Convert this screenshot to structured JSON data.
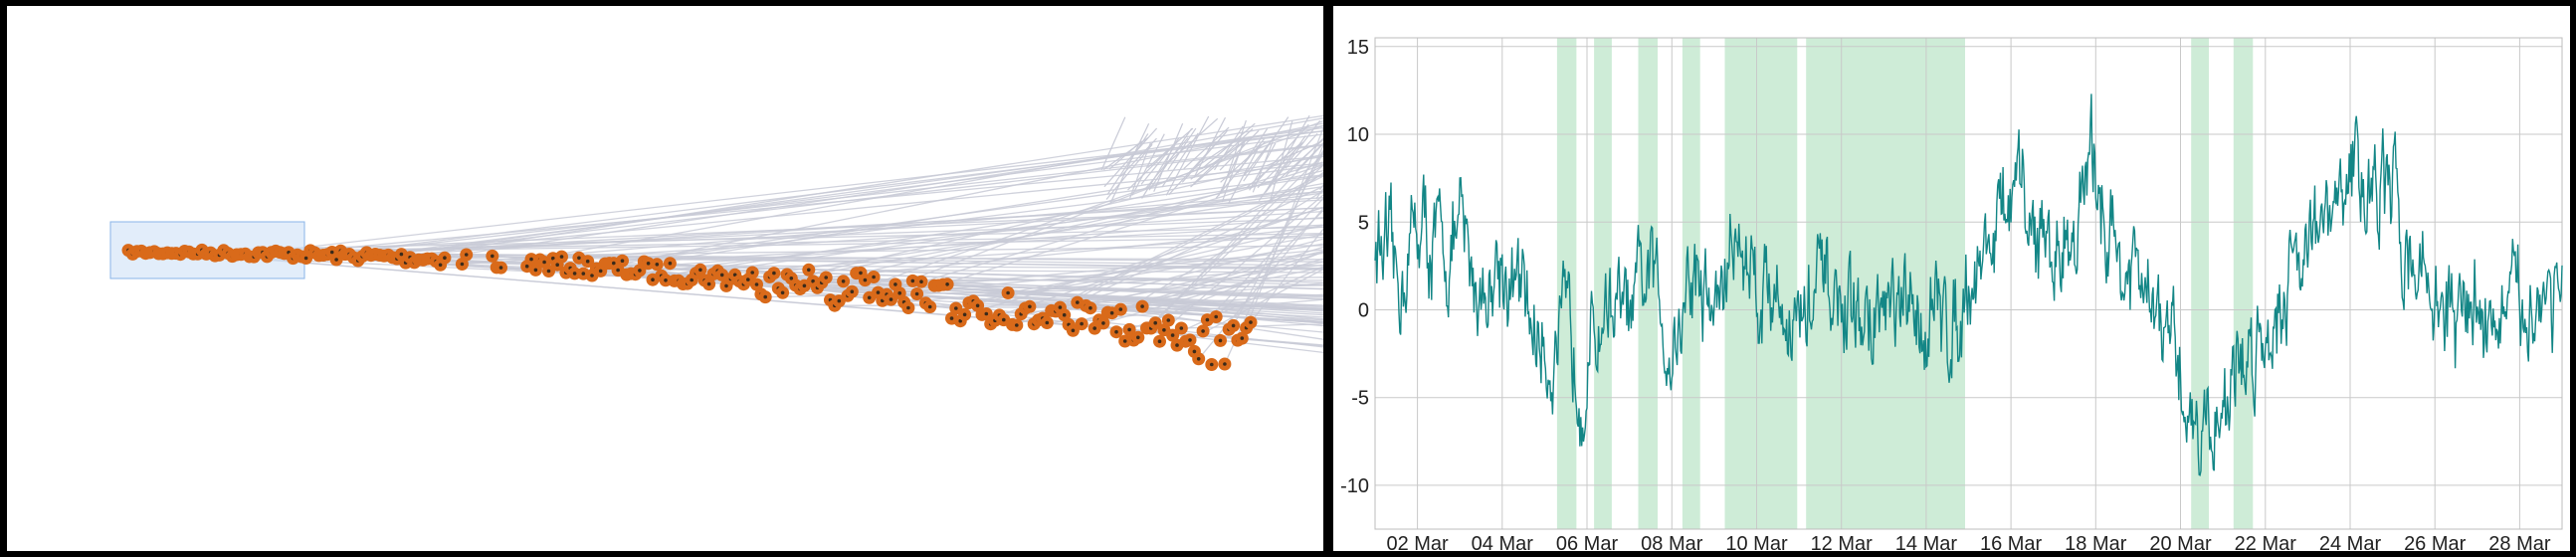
{
  "colors": {
    "background": "#ffffff",
    "border": "#000000",
    "links": "#c8cad6",
    "node_fill": "#d96a1a",
    "node_dot": "#3a2a1a",
    "brush": "#cfe1f7",
    "brush_stroke": "#8ab4e8",
    "line": "#138686",
    "shade": "#a6dcb7",
    "grid": "#c9c9c9"
  },
  "chart_data": [
    {
      "type": "scatter",
      "description_free": true,
      "node_count_approx": 260,
      "brush_selection": true,
      "links": true
    },
    {
      "type": "line",
      "x_start": "2024-03-01",
      "x_end": "2024-03-29",
      "x_tick_labels": [
        "02 Mar",
        "04 Mar",
        "06 Mar",
        "08 Mar",
        "10 Mar",
        "12 Mar",
        "14 Mar",
        "16 Mar",
        "18 Mar",
        "20 Mar",
        "22 Mar",
        "24 Mar",
        "26 Mar",
        "28 Mar"
      ],
      "y_ticks": [
        15,
        10,
        5,
        0,
        -5,
        -10
      ],
      "y_tick_labels": [
        "15",
        "10",
        "5",
        "0",
        "-5",
        "-10"
      ],
      "ylim": [
        -12.5,
        15.5
      ],
      "grid": true,
      "shaded_periods": [
        [
          "2024-03-05T07:00",
          "2024-03-05T18:00"
        ],
        [
          "2024-03-06T04:00",
          "2024-03-06T14:00"
        ],
        [
          "2024-03-07T05:00",
          "2024-03-07T16:00"
        ],
        [
          "2024-03-08T06:00",
          "2024-03-08T16:00"
        ],
        [
          "2024-03-09T06:00",
          "2024-03-10T23:00"
        ],
        [
          "2024-03-11T04:00",
          "2024-03-14T22:00"
        ],
        [
          "2024-03-20T06:00",
          "2024-03-20T16:00"
        ],
        [
          "2024-03-21T06:00",
          "2024-03-21T17:00"
        ]
      ],
      "series_outline": [
        [
          "2024-03-01T00:00",
          4
        ],
        [
          "2024-03-01T12:00",
          1
        ],
        [
          "2024-03-02T00:00",
          5
        ],
        [
          "2024-03-02T12:00",
          3
        ],
        [
          "2024-03-03T00:00",
          4
        ],
        [
          "2024-03-03T12:00",
          1
        ],
        [
          "2024-03-04T00:00",
          3
        ],
        [
          "2024-03-04T12:00",
          0
        ],
        [
          "2024-03-05T00:00",
          -2
        ],
        [
          "2024-03-05T12:00",
          -2
        ],
        [
          "2024-03-06T00:00",
          -3
        ],
        [
          "2024-03-06T12:00",
          1
        ],
        [
          "2024-03-07T00:00",
          -1
        ],
        [
          "2024-03-07T12:00",
          2
        ],
        [
          "2024-03-08T00:00",
          -2
        ],
        [
          "2024-03-08T12:00",
          2
        ],
        [
          "2024-03-09T00:00",
          0
        ],
        [
          "2024-03-09T12:00",
          4
        ],
        [
          "2024-03-10T00:00",
          2
        ],
        [
          "2024-03-10T12:00",
          1
        ],
        [
          "2024-03-11T00:00",
          -1
        ],
        [
          "2024-03-11T12:00",
          1
        ],
        [
          "2024-03-12T00:00",
          0
        ],
        [
          "2024-03-12T12:00",
          -1
        ],
        [
          "2024-03-13T00:00",
          0
        ],
        [
          "2024-03-13T12:00",
          -1
        ],
        [
          "2024-03-14T00:00",
          0
        ],
        [
          "2024-03-14T12:00",
          -1
        ],
        [
          "2024-03-15T00:00",
          2
        ],
        [
          "2024-03-15T12:00",
          4
        ],
        [
          "2024-03-16T00:00",
          6
        ],
        [
          "2024-03-16T12:00",
          5
        ],
        [
          "2024-03-17T00:00",
          3
        ],
        [
          "2024-03-17T12:00",
          5
        ],
        [
          "2024-03-18T00:00",
          8
        ],
        [
          "2024-03-18T12:00",
          3
        ],
        [
          "2024-03-19T00:00",
          1
        ],
        [
          "2024-03-19T12:00",
          -1
        ],
        [
          "2024-03-20T00:00",
          -4
        ],
        [
          "2024-03-20T12:00",
          -7
        ],
        [
          "2024-03-21T00:00",
          -5
        ],
        [
          "2024-03-21T12:00",
          -3
        ],
        [
          "2024-03-22T00:00",
          -1
        ],
        [
          "2024-03-22T12:00",
          2
        ],
        [
          "2024-03-23T00:00",
          5
        ],
        [
          "2024-03-23T12:00",
          4
        ],
        [
          "2024-03-24T00:00",
          8
        ],
        [
          "2024-03-24T12:00",
          7
        ],
        [
          "2024-03-25T00:00",
          6
        ],
        [
          "2024-03-25T12:00",
          3
        ],
        [
          "2024-03-26T00:00",
          1
        ],
        [
          "2024-03-26T12:00",
          -1
        ],
        [
          "2024-03-27T00:00",
          1
        ],
        [
          "2024-03-27T12:00",
          -1
        ],
        [
          "2024-03-28T00:00",
          0
        ],
        [
          "2024-03-28T12:00",
          1
        ],
        [
          "2024-03-29T00:00",
          2
        ]
      ]
    }
  ]
}
